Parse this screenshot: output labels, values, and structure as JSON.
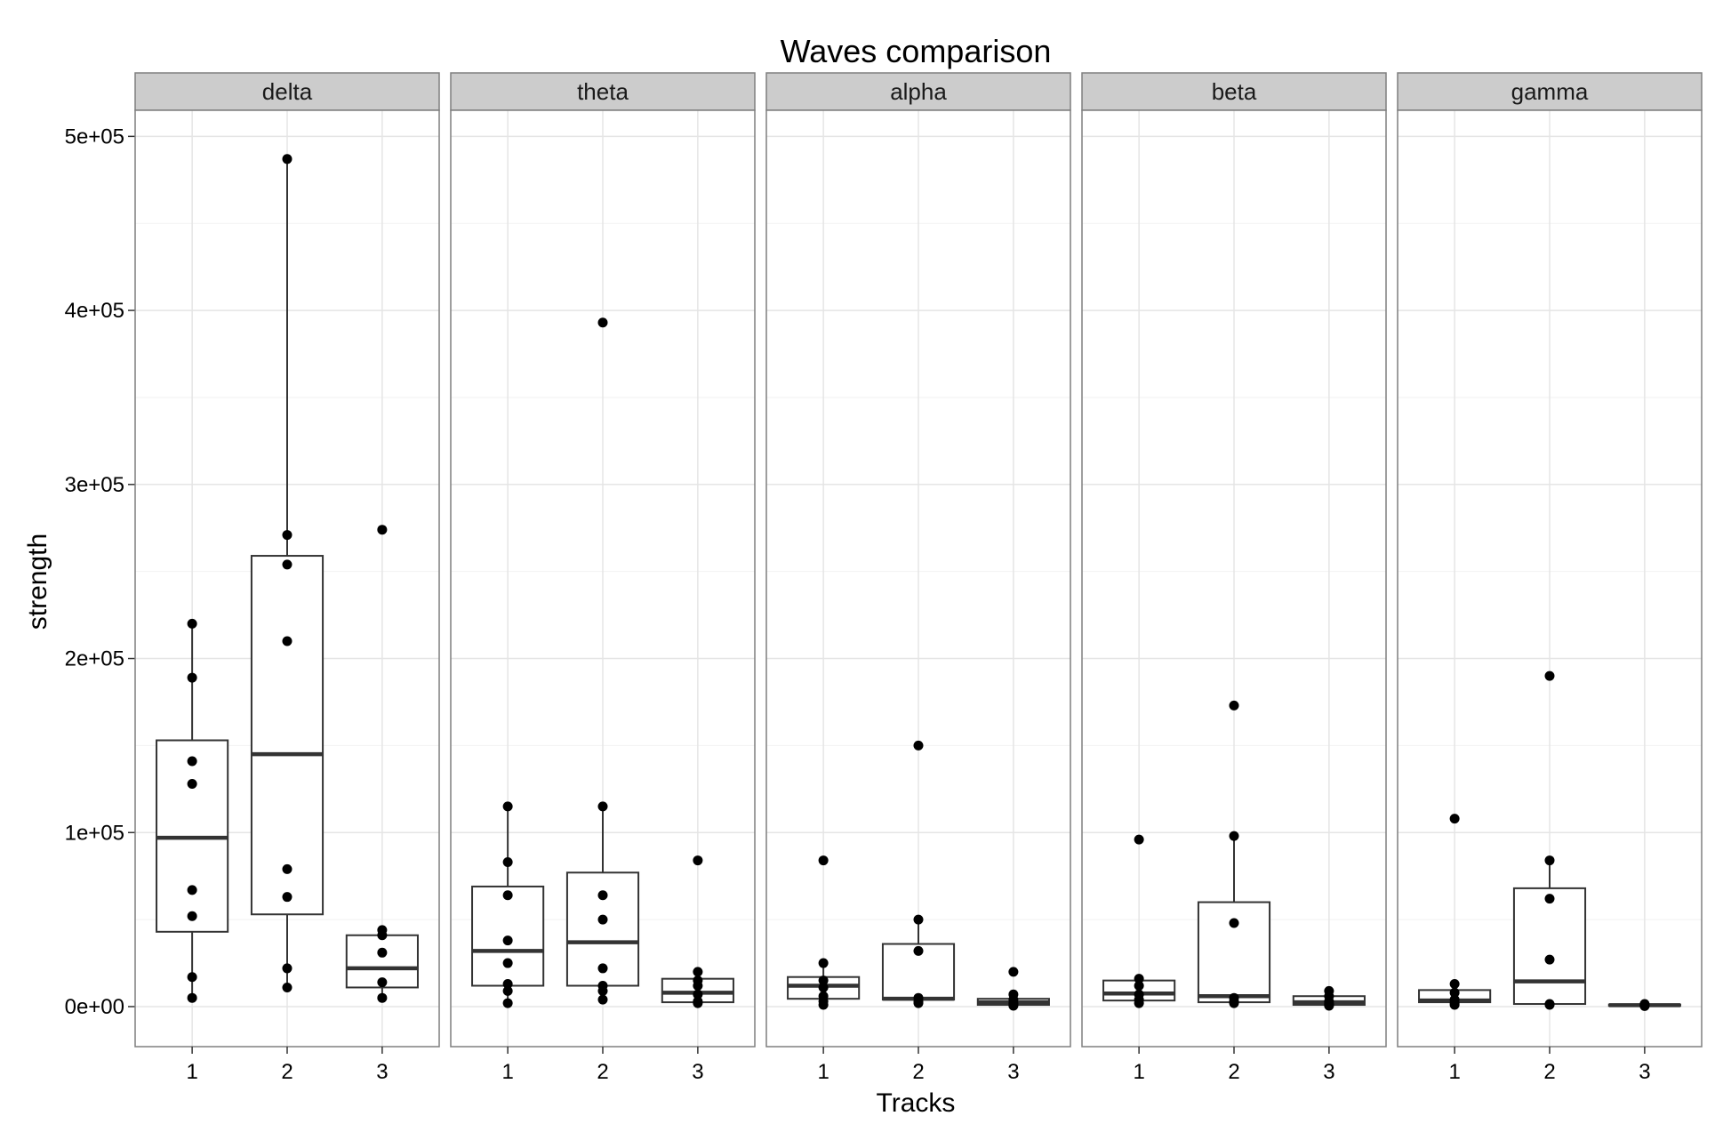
{
  "chart_data": {
    "type": "boxplot",
    "title": "Waves comparison",
    "xlabel": "Tracks",
    "ylabel": "strength",
    "categories": [
      "1",
      "2",
      "3"
    ],
    "ylim": [
      -23000,
      515000
    ],
    "yticks": [
      {
        "value": 0,
        "label": "0e+00"
      },
      {
        "value": 100000,
        "label": "1e+05"
      },
      {
        "value": 200000,
        "label": "2e+05"
      },
      {
        "value": 300000,
        "label": "3e+05"
      },
      {
        "value": 400000,
        "label": "4e+05"
      },
      {
        "value": 500000,
        "label": "5e+05"
      }
    ],
    "grid": true,
    "panels": [
      {
        "name": "delta",
        "boxes": [
          {
            "track": "1",
            "lower_whisker": 5000,
            "q1": 43000,
            "median": 97000,
            "q3": 153000,
            "upper_whisker": 220000,
            "points": [
              220000,
              189000,
              141000,
              128000,
              67000,
              52000,
              17000,
              5000
            ]
          },
          {
            "track": "2",
            "lower_whisker": 11000,
            "q1": 53000,
            "median": 145000,
            "q3": 259000,
            "upper_whisker": 487000,
            "points": [
              487000,
              271000,
              254000,
              210000,
              79000,
              63000,
              22000,
              11000
            ]
          },
          {
            "track": "3",
            "lower_whisker": 5000,
            "q1": 11000,
            "median": 22000,
            "q3": 41000,
            "upper_whisker": 44000,
            "points": [
              274000,
              44000,
              41000,
              31000,
              14000,
              5000
            ]
          }
        ]
      },
      {
        "name": "theta",
        "boxes": [
          {
            "track": "1",
            "lower_whisker": 2000,
            "q1": 12000,
            "median": 32000,
            "q3": 69000,
            "upper_whisker": 115000,
            "points": [
              115000,
              83000,
              64000,
              38000,
              25000,
              13000,
              9000,
              2000
            ]
          },
          {
            "track": "2",
            "lower_whisker": 4000,
            "q1": 12000,
            "median": 37000,
            "q3": 77000,
            "upper_whisker": 115000,
            "points": [
              393000,
              115000,
              64000,
              50000,
              22000,
              12000,
              9000,
              4000
            ]
          },
          {
            "track": "3",
            "lower_whisker": 2000,
            "q1": 2500,
            "median": 8000,
            "q3": 16000,
            "upper_whisker": 20000,
            "points": [
              84000,
              20000,
              15000,
              12000,
              7000,
              3000,
              2000
            ]
          }
        ]
      },
      {
        "name": "alpha",
        "boxes": [
          {
            "track": "1",
            "lower_whisker": 1000,
            "q1": 4500,
            "median": 12000,
            "q3": 17000,
            "upper_whisker": 25000,
            "points": [
              84000,
              25000,
              15000,
              11000,
              6000,
              3000,
              1000
            ]
          },
          {
            "track": "2",
            "lower_whisker": 2000,
            "q1": 4000,
            "median": 4500,
            "q3": 36000,
            "upper_whisker": 50000,
            "points": [
              150000,
              50000,
              32000,
              5000,
              3000,
              2000
            ]
          },
          {
            "track": "3",
            "lower_whisker": 500,
            "q1": 1000,
            "median": 2500,
            "q3": 4500,
            "upper_whisker": 7000,
            "points": [
              20000,
              7000,
              4000,
              2000,
              1000,
              500
            ]
          }
        ]
      },
      {
        "name": "beta",
        "boxes": [
          {
            "track": "1",
            "lower_whisker": 2000,
            "q1": 3500,
            "median": 7500,
            "q3": 15000,
            "upper_whisker": 16000,
            "points": [
              96000,
              16000,
              12000,
              7000,
              4000,
              2000
            ]
          },
          {
            "track": "2",
            "lower_whisker": 2000,
            "q1": 2500,
            "median": 6000,
            "q3": 60000,
            "upper_whisker": 98000,
            "points": [
              173000,
              98000,
              48000,
              5000,
              3000,
              2000
            ]
          },
          {
            "track": "3",
            "lower_whisker": 500,
            "q1": 1000,
            "median": 2500,
            "q3": 6000,
            "upper_whisker": 9000,
            "points": [
              9000,
              6000,
              3000,
              1500,
              1000,
              500
            ]
          }
        ]
      },
      {
        "name": "gamma",
        "boxes": [
          {
            "track": "1",
            "lower_whisker": 1000,
            "q1": 2500,
            "median": 3500,
            "q3": 9500,
            "upper_whisker": 13000,
            "points": [
              108000,
              13000,
              8000,
              4000,
              2000,
              1000
            ]
          },
          {
            "track": "2",
            "lower_whisker": 1000,
            "q1": 1500,
            "median": 14500,
            "q3": 68000,
            "upper_whisker": 84000,
            "points": [
              190000,
              84000,
              62000,
              27000,
              1500,
              1000
            ]
          },
          {
            "track": "3",
            "lower_whisker": 300,
            "q1": 500,
            "median": 800,
            "q3": 1200,
            "upper_whisker": 1500,
            "points": [
              1500,
              1000,
              800,
              500,
              300
            ]
          }
        ]
      }
    ]
  }
}
